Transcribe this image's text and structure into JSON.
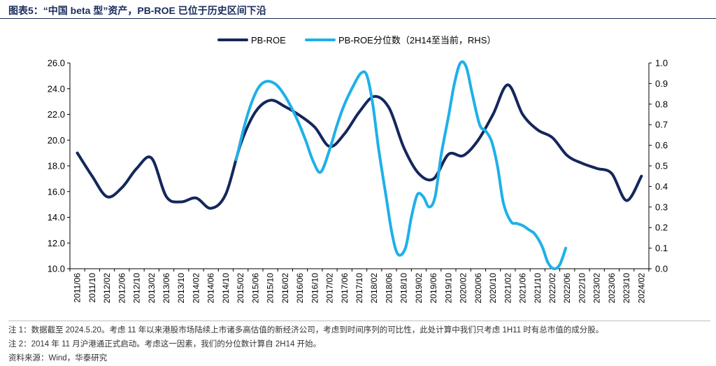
{
  "title": "图表5：“中国 beta 型”资产，PB-ROE 已位于历史区间下沿",
  "notes": [
    "注 1：数据截至 2024.5.20。考虑 11 年以来港股市场陆续上市诸多高估值的新经济公司，考虑到时间序列的可比性，此处计算中我们只考虑 1H11 时有总市值的成分股。",
    "注 2：2014 年 11 月沪港通正式启动。考虑这一因素，我们的分位数计算自 2H14 开始。",
    "资料来源：Wind，华泰研究"
  ],
  "colors": {
    "pb_roe": "#14275c",
    "percentile": "#1fb0e8",
    "title": "#1a2c5b"
  },
  "chart_data": {
    "type": "line",
    "legend_position": "top",
    "grid": false,
    "categories": [
      "2011/06",
      "2011/10",
      "2012/02",
      "2012/06",
      "2012/10",
      "2013/02",
      "2013/06",
      "2013/10",
      "2014/02",
      "2014/06",
      "2014/10",
      "2015/02",
      "2015/06",
      "2015/10",
      "2016/02",
      "2016/06",
      "2016/10",
      "2017/02",
      "2017/06",
      "2017/10",
      "2018/02",
      "2018/06",
      "2018/10",
      "2019/02",
      "2019/06",
      "2019/10",
      "2020/02",
      "2020/06",
      "2020/10",
      "2021/02",
      "2021/06",
      "2021/10",
      "2022/02",
      "2022/06",
      "2022/10",
      "2023/02",
      "2023/06",
      "2023/10",
      "2024/02"
    ],
    "left_axis": {
      "range": [
        10.0,
        26.0
      ],
      "ticks": [
        "10.0",
        "12.0",
        "14.0",
        "16.0",
        "18.0",
        "20.0",
        "22.0",
        "24.0",
        "26.0"
      ]
    },
    "right_axis": {
      "range": [
        0.0,
        1.0
      ],
      "ticks": [
        "0.0",
        "0.1",
        "0.2",
        "0.3",
        "0.4",
        "0.5",
        "0.6",
        "0.7",
        "0.8",
        "0.9",
        "1.0"
      ]
    },
    "series": [
      {
        "name": "PB-ROE",
        "axis": "left",
        "points": [
          [
            0,
            19.0
          ],
          [
            1,
            17.2
          ],
          [
            2,
            15.6
          ],
          [
            3,
            16.3
          ],
          [
            4,
            17.8
          ],
          [
            5,
            18.6
          ],
          [
            6,
            15.6
          ],
          [
            7,
            15.2
          ],
          [
            8,
            15.5
          ],
          [
            9,
            14.7
          ],
          [
            10,
            15.8
          ],
          [
            11,
            19.7
          ],
          [
            12,
            22.2
          ],
          [
            13,
            23.1
          ],
          [
            14,
            22.6
          ],
          [
            15,
            21.9
          ],
          [
            16,
            21.0
          ],
          [
            17,
            19.5
          ],
          [
            18,
            20.5
          ],
          [
            19,
            22.2
          ],
          [
            20,
            23.4
          ],
          [
            21,
            22.5
          ],
          [
            22,
            19.4
          ],
          [
            23,
            17.4
          ],
          [
            24,
            17.0
          ],
          [
            25,
            18.9
          ],
          [
            26,
            18.8
          ],
          [
            27,
            20.0
          ],
          [
            28,
            22.0
          ],
          [
            29,
            24.3
          ],
          [
            30,
            22.0
          ],
          [
            31,
            20.8
          ],
          [
            32,
            20.2
          ],
          [
            33,
            18.8
          ],
          [
            34,
            18.2
          ],
          [
            35,
            17.8
          ],
          [
            36,
            17.4
          ],
          [
            37,
            15.3
          ],
          [
            38,
            17.2
          ]
        ]
      },
      {
        "name": "PB-ROE分位数（2H14至当前，RHS）",
        "axis": "right",
        "points": [
          [
            10.7,
            0.53
          ],
          [
            11.2,
            0.68
          ],
          [
            11.7,
            0.8
          ],
          [
            12.2,
            0.88
          ],
          [
            12.7,
            0.91
          ],
          [
            13.3,
            0.9
          ],
          [
            13.8,
            0.86
          ],
          [
            14.3,
            0.8
          ],
          [
            14.9,
            0.71
          ],
          [
            15.4,
            0.62
          ],
          [
            15.9,
            0.52
          ],
          [
            16.4,
            0.47
          ],
          [
            17.0,
            0.58
          ],
          [
            17.5,
            0.7
          ],
          [
            18.0,
            0.8
          ],
          [
            18.6,
            0.89
          ],
          [
            19.1,
            0.95
          ],
          [
            19.5,
            0.94
          ],
          [
            19.9,
            0.8
          ],
          [
            20.3,
            0.58
          ],
          [
            20.8,
            0.35
          ],
          [
            21.2,
            0.17
          ],
          [
            21.6,
            0.07
          ],
          [
            22.1,
            0.1
          ],
          [
            22.5,
            0.25
          ],
          [
            22.9,
            0.36
          ],
          [
            23.3,
            0.35
          ],
          [
            23.7,
            0.3
          ],
          [
            24.1,
            0.35
          ],
          [
            24.5,
            0.55
          ],
          [
            25.0,
            0.74
          ],
          [
            25.4,
            0.9
          ],
          [
            25.8,
            1.0
          ],
          [
            26.2,
            0.98
          ],
          [
            26.6,
            0.85
          ],
          [
            27.1,
            0.7
          ],
          [
            27.5,
            0.67
          ],
          [
            27.9,
            0.62
          ],
          [
            28.3,
            0.5
          ],
          [
            28.7,
            0.32
          ],
          [
            29.2,
            0.23
          ],
          [
            29.6,
            0.22
          ],
          [
            30.0,
            0.21
          ],
          [
            30.4,
            0.19
          ],
          [
            30.8,
            0.17
          ],
          [
            31.3,
            0.11
          ],
          [
            31.7,
            0.03
          ],
          [
            32.1,
            0.0
          ],
          [
            32.5,
            0.02
          ],
          [
            32.9,
            0.1
          ]
        ]
      }
    ]
  }
}
